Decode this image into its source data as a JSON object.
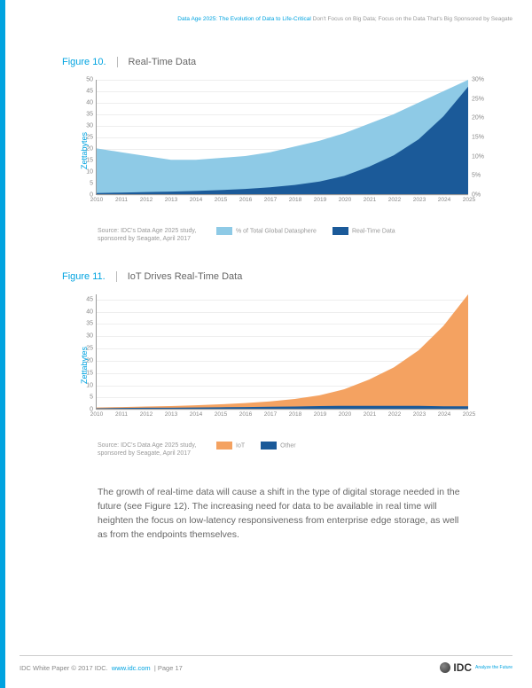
{
  "header": {
    "main": "Data Age 2025: The Evolution of Data to Life-Critical",
    "sub": "Don't Focus on Big Data; Focus on the Data That's Big",
    "sponsor": "Sponsored by Seagate"
  },
  "fig10": {
    "num": "Figure 10.",
    "title": "Real-Time Data",
    "type": "area",
    "ylabel": "Zettabytes",
    "xcats": [
      "2010",
      "2011",
      "2012",
      "2013",
      "2014",
      "2015",
      "2016",
      "2017",
      "2018",
      "2019",
      "2020",
      "2021",
      "2022",
      "2023",
      "2024",
      "2025"
    ],
    "yticks_left": [
      0,
      5,
      10,
      15,
      20,
      25,
      30,
      35,
      40,
      45,
      50
    ],
    "yticks_right": [
      "0%",
      "5%",
      "10%",
      "15%",
      "20%",
      "25%",
      "30%"
    ],
    "ylim_left": [
      0,
      50
    ],
    "ylim_right": [
      0,
      30
    ],
    "series_pct": {
      "label": "% of Total Global Datasphere",
      "color": "#8ecae6",
      "values_pct": [
        12,
        11,
        10,
        9,
        9,
        9.5,
        10,
        11,
        12.5,
        14,
        16,
        18.5,
        21,
        24,
        27,
        30
      ]
    },
    "series_rt": {
      "label": "Real-Time Data",
      "color": "#1b5a99",
      "values_zb": [
        0.5,
        0.7,
        0.9,
        1.1,
        1.4,
        1.8,
        2.3,
        3,
        4,
        5.5,
        8,
        12,
        17,
        24,
        34,
        47
      ]
    },
    "source": "Source: IDC's Data Age 2025 study, sponsored by Seagate, April 2017",
    "grid_color": "#eeeeee",
    "axis_color": "#999999",
    "background_color": "#ffffff"
  },
  "fig11": {
    "num": "Figure 11.",
    "title": "IoT Drives Real-Time Data",
    "type": "area",
    "ylabel": "Zettabytes",
    "xcats": [
      "2010",
      "2011",
      "2012",
      "2013",
      "2014",
      "2015",
      "2016",
      "2017",
      "2018",
      "2019",
      "2020",
      "2021",
      "2022",
      "2023",
      "2024",
      "2025"
    ],
    "yticks_left": [
      0,
      5,
      10,
      15,
      20,
      25,
      30,
      35,
      40,
      45
    ],
    "ylim_left": [
      0,
      47
    ],
    "series_iot": {
      "label": "IoT",
      "color": "#f4a261",
      "values_zb": [
        0.3,
        0.4,
        0.5,
        0.7,
        0.9,
        1.2,
        1.6,
        2.2,
        3.1,
        4.4,
        6.8,
        10.8,
        15.8,
        22.8,
        33,
        46
      ]
    },
    "series_other": {
      "label": "Other",
      "color": "#1b5a99",
      "values_zb": [
        0.2,
        0.3,
        0.4,
        0.4,
        0.5,
        0.6,
        0.7,
        0.8,
        0.9,
        1.1,
        1.2,
        1.2,
        1.2,
        1.2,
        1,
        1
      ]
    },
    "source": "Source: IDC's Data Age 2025 study, sponsored by Seagate, April 2017",
    "grid_color": "#eeeeee",
    "axis_color": "#999999",
    "background_color": "#ffffff"
  },
  "body": "The growth of real-time data will cause a shift in the type of digital storage needed in the future (see Figure 12). The increasing need for data to be available in real time will heighten the focus on low-latency responsiveness from enterprise edge storage, as well as from the endpoints themselves.",
  "footer": {
    "copyright": "IDC White Paper  © 2017 IDC.",
    "url": "www.idc.com",
    "page": "Page 17",
    "logo_text": "IDC",
    "logo_sub": "Analyze the Future"
  }
}
